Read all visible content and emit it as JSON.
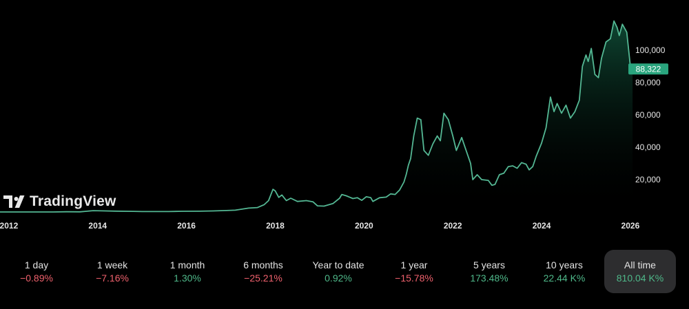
{
  "brand": {
    "name": "TradingView"
  },
  "colors": {
    "line": "#54b894",
    "fill_top": "#0c3a2a",
    "badge": "#2aa57e",
    "negative": "#f0616d",
    "positive": "#4fb98a",
    "active_bg": "#2d2d2f"
  },
  "chart_data": {
    "type": "area",
    "xlabel": "",
    "ylabel": "",
    "x_ticks": [
      "2012",
      "2014",
      "2016",
      "2018",
      "2020",
      "2022",
      "2024",
      "2026"
    ],
    "y_ticks": [
      "20,000",
      "40,000",
      "60,000",
      "80,000",
      "100,000"
    ],
    "ylim": [
      0,
      125000
    ],
    "xlim": [
      2011.8,
      2026.7
    ],
    "current_price": 88322,
    "current_price_label": "88,322",
    "y_axis_position": "right",
    "grid": false,
    "points": [
      [
        2011.8,
        5
      ],
      [
        2012.5,
        8
      ],
      [
        2013.0,
        15
      ],
      [
        2013.3,
        120
      ],
      [
        2013.6,
        100
      ],
      [
        2013.9,
        800
      ],
      [
        2014.1,
        700
      ],
      [
        2014.4,
        500
      ],
      [
        2014.8,
        380
      ],
      [
        2015.0,
        250
      ],
      [
        2015.6,
        260
      ],
      [
        2015.9,
        420
      ],
      [
        2016.3,
        450
      ],
      [
        2016.6,
        650
      ],
      [
        2016.9,
        900
      ],
      [
        2017.1,
        1100
      ],
      [
        2017.4,
        2400
      ],
      [
        2017.6,
        2700
      ],
      [
        2017.75,
        4500
      ],
      [
        2017.85,
        7000
      ],
      [
        2017.95,
        14000
      ],
      [
        2018.0,
        13000
      ],
      [
        2018.08,
        9000
      ],
      [
        2018.15,
        10500
      ],
      [
        2018.25,
        7000
      ],
      [
        2018.35,
        8500
      ],
      [
        2018.5,
        6500
      ],
      [
        2018.7,
        7000
      ],
      [
        2018.85,
        6300
      ],
      [
        2018.95,
        3800
      ],
      [
        2019.1,
        3600
      ],
      [
        2019.3,
        5200
      ],
      [
        2019.45,
        8500
      ],
      [
        2019.5,
        10800
      ],
      [
        2019.6,
        10000
      ],
      [
        2019.75,
        8300
      ],
      [
        2019.85,
        8800
      ],
      [
        2019.95,
        7200
      ],
      [
        2020.05,
        9400
      ],
      [
        2020.15,
        8900
      ],
      [
        2020.2,
        6500
      ],
      [
        2020.35,
        8800
      ],
      [
        2020.5,
        9200
      ],
      [
        2020.6,
        11200
      ],
      [
        2020.7,
        10800
      ],
      [
        2020.8,
        13500
      ],
      [
        2020.9,
        18500
      ],
      [
        2020.95,
        23000
      ],
      [
        2021.0,
        29000
      ],
      [
        2021.05,
        33000
      ],
      [
        2021.12,
        47000
      ],
      [
        2021.2,
        58000
      ],
      [
        2021.28,
        57000
      ],
      [
        2021.35,
        38000
      ],
      [
        2021.45,
        35000
      ],
      [
        2021.55,
        42000
      ],
      [
        2021.65,
        47000
      ],
      [
        2021.72,
        44000
      ],
      [
        2021.8,
        61000
      ],
      [
        2021.9,
        57000
      ],
      [
        2022.0,
        47000
      ],
      [
        2022.08,
        38000
      ],
      [
        2022.2,
        46000
      ],
      [
        2022.3,
        38000
      ],
      [
        2022.4,
        30000
      ],
      [
        2022.45,
        20000
      ],
      [
        2022.55,
        23000
      ],
      [
        2022.65,
        20000
      ],
      [
        2022.8,
        19500
      ],
      [
        2022.88,
        16500
      ],
      [
        2022.95,
        17000
      ],
      [
        2023.05,
        23000
      ],
      [
        2023.15,
        24000
      ],
      [
        2023.25,
        28000
      ],
      [
        2023.35,
        28500
      ],
      [
        2023.45,
        27000
      ],
      [
        2023.55,
        30500
      ],
      [
        2023.65,
        29500
      ],
      [
        2023.72,
        26000
      ],
      [
        2023.8,
        28000
      ],
      [
        2023.88,
        34500
      ],
      [
        2024.0,
        42500
      ],
      [
        2024.1,
        52000
      ],
      [
        2024.2,
        71000
      ],
      [
        2024.28,
        62000
      ],
      [
        2024.35,
        67000
      ],
      [
        2024.45,
        61000
      ],
      [
        2024.55,
        66000
      ],
      [
        2024.65,
        58000
      ],
      [
        2024.75,
        62000
      ],
      [
        2024.85,
        69000
      ],
      [
        2024.92,
        90000
      ],
      [
        2025.0,
        97000
      ],
      [
        2025.05,
        93000
      ],
      [
        2025.12,
        101000
      ],
      [
        2025.2,
        85000
      ],
      [
        2025.28,
        83000
      ],
      [
        2025.35,
        95000
      ],
      [
        2025.45,
        105000
      ],
      [
        2025.55,
        107000
      ],
      [
        2025.63,
        118000
      ],
      [
        2025.7,
        114000
      ],
      [
        2025.75,
        109000
      ],
      [
        2025.82,
        116000
      ],
      [
        2025.92,
        111000
      ],
      [
        2026.0,
        90000
      ],
      [
        2026.05,
        88322
      ]
    ]
  },
  "periods": [
    {
      "label": "1 day",
      "value": "−0.89%",
      "sign": "neg"
    },
    {
      "label": "1 week",
      "value": "−7.16%",
      "sign": "neg"
    },
    {
      "label": "1 month",
      "value": "1.30%",
      "sign": "pos"
    },
    {
      "label": "6 months",
      "value": "−25.21%",
      "sign": "neg"
    },
    {
      "label": "Year to date",
      "value": "0.92%",
      "sign": "pos"
    },
    {
      "label": "1 year",
      "value": "−15.78%",
      "sign": "neg"
    },
    {
      "label": "5 years",
      "value": "173.48%",
      "sign": "pos"
    },
    {
      "label": "10 years",
      "value": "22.44 K%",
      "sign": "pos"
    },
    {
      "label": "All time",
      "value": "810.04 K%",
      "sign": "pos",
      "active": true
    }
  ]
}
